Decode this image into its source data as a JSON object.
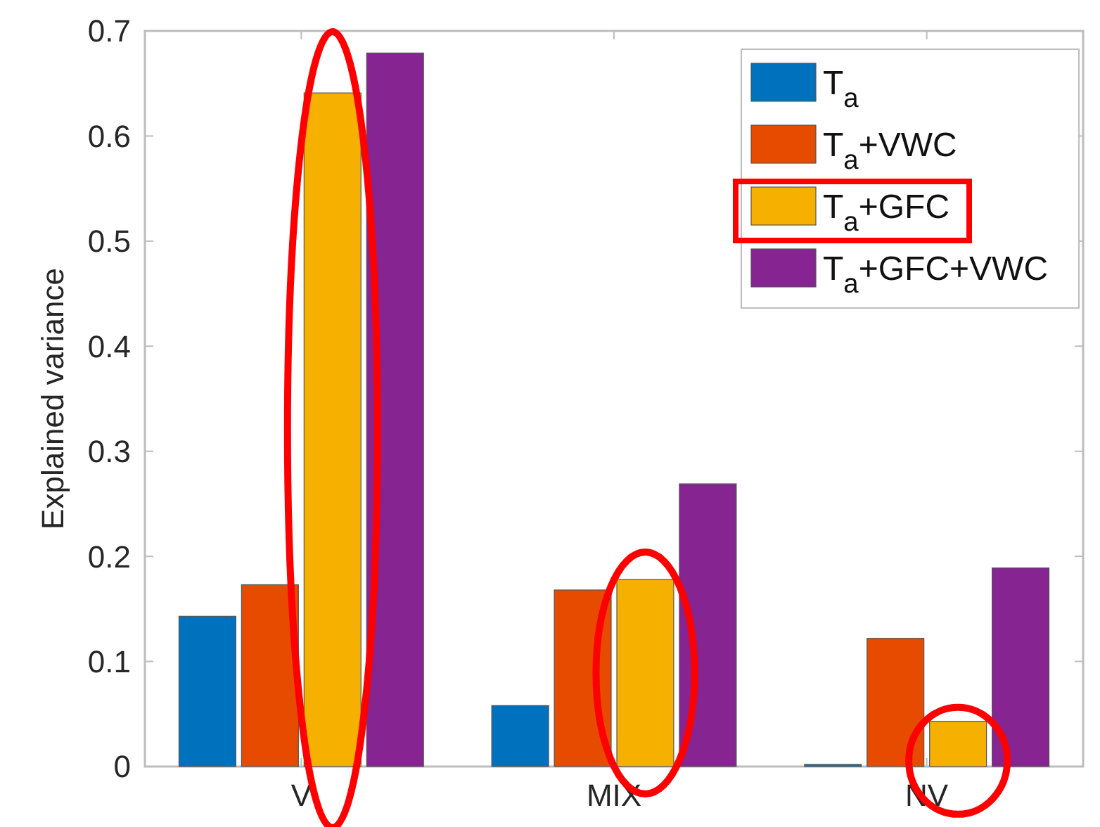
{
  "chart_data": {
    "type": "bar",
    "ylabel": "Explained variance",
    "categories": [
      "V",
      "MIX",
      "NV"
    ],
    "series": [
      {
        "name": "T$_{a}$",
        "color": "#0072bd",
        "values": [
          0.143,
          0.058,
          0.002
        ]
      },
      {
        "name": "T$_{a}$+VWC",
        "color": "#e64b00",
        "values": [
          0.173,
          0.168,
          0.122
        ]
      },
      {
        "name": "T$_{a}$+GFC",
        "color": "#f5b000",
        "values": [
          0.641,
          0.178,
          0.043
        ]
      },
      {
        "name": "T$_{a}$+GFC+VWC",
        "color": "#862491",
        "values": [
          0.679,
          0.269,
          0.189
        ]
      }
    ],
    "ylim": [
      0,
      0.7
    ],
    "yticks": [
      0,
      0.1,
      0.2,
      0.3,
      0.4,
      0.5,
      0.6,
      0.7
    ],
    "legend": "top right"
  }
}
